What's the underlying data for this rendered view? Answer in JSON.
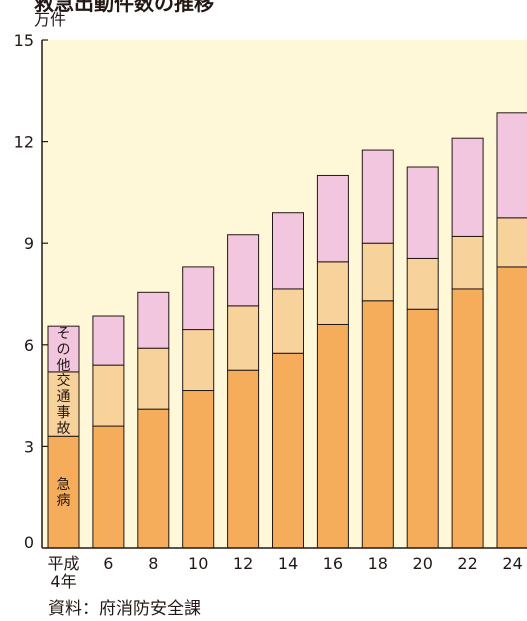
{
  "chart_data": {
    "type": "bar",
    "stacked": true,
    "title": "救急出動件数の推移",
    "ylabel": "万件",
    "ylim": [
      0,
      15
    ],
    "yticks": [
      "0",
      "3",
      "6",
      "9",
      "12",
      "15"
    ],
    "categories": [
      "平成\n4年",
      "6",
      "8",
      "10",
      "12",
      "14",
      "16",
      "18",
      "20",
      "22",
      "24"
    ],
    "series": [
      {
        "name": "急病",
        "color": "#f5ad5c",
        "values": [
          3.3,
          3.6,
          4.1,
          4.65,
          5.25,
          5.75,
          6.6,
          7.3,
          7.05,
          7.65,
          8.3
        ]
      },
      {
        "name": "交通事故",
        "color": "#f8d29b",
        "values": [
          1.9,
          1.8,
          1.8,
          1.8,
          1.9,
          1.9,
          1.85,
          1.7,
          1.5,
          1.55,
          1.45
        ]
      },
      {
        "name": "その他",
        "color": "#f2c6de",
        "values": [
          1.35,
          1.45,
          1.65,
          1.85,
          2.1,
          2.25,
          2.55,
          2.75,
          2.7,
          2.9,
          3.1
        ]
      }
    ],
    "source": "資料：府消防安全課"
  }
}
